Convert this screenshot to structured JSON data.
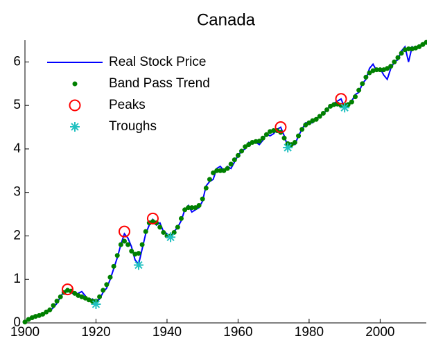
{
  "chart_data": {
    "type": "line",
    "title": "Canada",
    "x": [
      1900,
      1901,
      1902,
      1903,
      1904,
      1905,
      1906,
      1907,
      1908,
      1909,
      1910,
      1911,
      1912,
      1913,
      1914,
      1915,
      1916,
      1917,
      1918,
      1919,
      1920,
      1921,
      1922,
      1923,
      1924,
      1925,
      1926,
      1927,
      1928,
      1929,
      1930,
      1931,
      1932,
      1933,
      1934,
      1935,
      1936,
      1937,
      1938,
      1939,
      1940,
      1941,
      1942,
      1943,
      1944,
      1945,
      1946,
      1947,
      1948,
      1949,
      1950,
      1951,
      1952,
      1953,
      1954,
      1955,
      1956,
      1957,
      1958,
      1959,
      1960,
      1961,
      1962,
      1963,
      1964,
      1965,
      1966,
      1967,
      1968,
      1969,
      1970,
      1971,
      1972,
      1973,
      1974,
      1975,
      1976,
      1977,
      1978,
      1979,
      1980,
      1981,
      1982,
      1983,
      1984,
      1985,
      1986,
      1987,
      1988,
      1989,
      1990,
      1991,
      1992,
      1993,
      1994,
      1995,
      1996,
      1997,
      1998,
      1999,
      2000,
      2001,
      2002,
      2003,
      2004,
      2005,
      2006,
      2007,
      2008,
      2009,
      2010,
      2011,
      2012,
      2013
    ],
    "series": [
      {
        "name": "Real Stock Price",
        "color": "#0000ff",
        "style": "line",
        "values": [
          0.02,
          0.07,
          0.12,
          0.14,
          0.16,
          0.2,
          0.25,
          0.28,
          0.35,
          0.45,
          0.6,
          0.72,
          0.75,
          0.7,
          0.65,
          0.68,
          0.72,
          0.62,
          0.5,
          0.55,
          0.48,
          0.55,
          0.7,
          0.8,
          1.0,
          1.25,
          1.5,
          1.8,
          2.05,
          1.95,
          1.75,
          1.45,
          1.35,
          1.7,
          2.05,
          2.25,
          2.38,
          2.25,
          2.3,
          2.1,
          2.05,
          1.97,
          2.1,
          2.2,
          2.35,
          2.6,
          2.7,
          2.55,
          2.6,
          2.65,
          2.8,
          3.15,
          3.25,
          3.3,
          3.55,
          3.6,
          3.5,
          3.6,
          3.55,
          3.7,
          3.85,
          3.95,
          4.0,
          4.15,
          4.12,
          4.15,
          4.1,
          4.2,
          4.35,
          4.3,
          4.35,
          4.45,
          4.5,
          4.3,
          4.05,
          4.1,
          4.1,
          4.3,
          4.45,
          4.6,
          4.6,
          4.6,
          4.7,
          4.75,
          4.8,
          4.9,
          5.0,
          5.05,
          5.1,
          5.15,
          4.95,
          5.0,
          5.1,
          5.25,
          5.3,
          5.5,
          5.6,
          5.85,
          5.95,
          5.8,
          5.85,
          5.7,
          5.6,
          5.85,
          6.0,
          6.05,
          6.25,
          6.35,
          6.0,
          6.35,
          6.3,
          6.35,
          6.4,
          6.45
        ]
      },
      {
        "name": "Band Pass Trend",
        "color": "#008000",
        "style": "dots",
        "values": [
          0.02,
          0.08,
          0.12,
          0.15,
          0.17,
          0.2,
          0.25,
          0.3,
          0.4,
          0.5,
          0.6,
          0.7,
          0.75,
          0.73,
          0.68,
          0.63,
          0.6,
          0.57,
          0.53,
          0.5,
          0.5,
          0.6,
          0.75,
          0.88,
          1.05,
          1.3,
          1.55,
          1.8,
          1.88,
          1.8,
          1.65,
          1.58,
          1.6,
          1.8,
          2.1,
          2.3,
          2.33,
          2.3,
          2.2,
          2.08,
          2.0,
          2.0,
          2.08,
          2.2,
          2.4,
          2.6,
          2.65,
          2.65,
          2.65,
          2.7,
          2.85,
          3.1,
          3.3,
          3.45,
          3.5,
          3.5,
          3.5,
          3.55,
          3.65,
          3.75,
          3.85,
          3.95,
          4.05,
          4.1,
          4.15,
          4.17,
          4.18,
          4.25,
          4.33,
          4.4,
          4.42,
          4.42,
          4.38,
          4.25,
          4.12,
          4.1,
          4.15,
          4.3,
          4.45,
          4.55,
          4.6,
          4.65,
          4.68,
          4.75,
          4.82,
          4.9,
          4.98,
          5.02,
          5.03,
          5.0,
          5.0,
          5.02,
          5.08,
          5.2,
          5.35,
          5.5,
          5.65,
          5.75,
          5.8,
          5.82,
          5.82,
          5.82,
          5.85,
          5.9,
          6.0,
          6.1,
          6.2,
          6.28,
          6.3,
          6.3,
          6.32,
          6.35,
          6.4,
          6.45
        ]
      },
      {
        "name": "Peaks",
        "color": "#ff0000",
        "style": "circle",
        "x": [
          1912,
          1928,
          1936,
          1972,
          1989
        ],
        "values": [
          0.77,
          2.1,
          2.4,
          4.5,
          5.15
        ]
      },
      {
        "name": "Troughs",
        "color": "#20c0c0",
        "style": "star",
        "x": [
          1920,
          1932,
          1941,
          1974,
          1990
        ],
        "values": [
          0.43,
          1.33,
          1.97,
          4.03,
          4.95
        ]
      }
    ],
    "xlim": [
      1900,
      2013
    ],
    "ylim": [
      0,
      6.5
    ],
    "xticks": [
      1900,
      1920,
      1940,
      1960,
      1980,
      2000
    ],
    "yticks": [
      0,
      1,
      2,
      3,
      4,
      5,
      6
    ],
    "legend": "upper left"
  }
}
